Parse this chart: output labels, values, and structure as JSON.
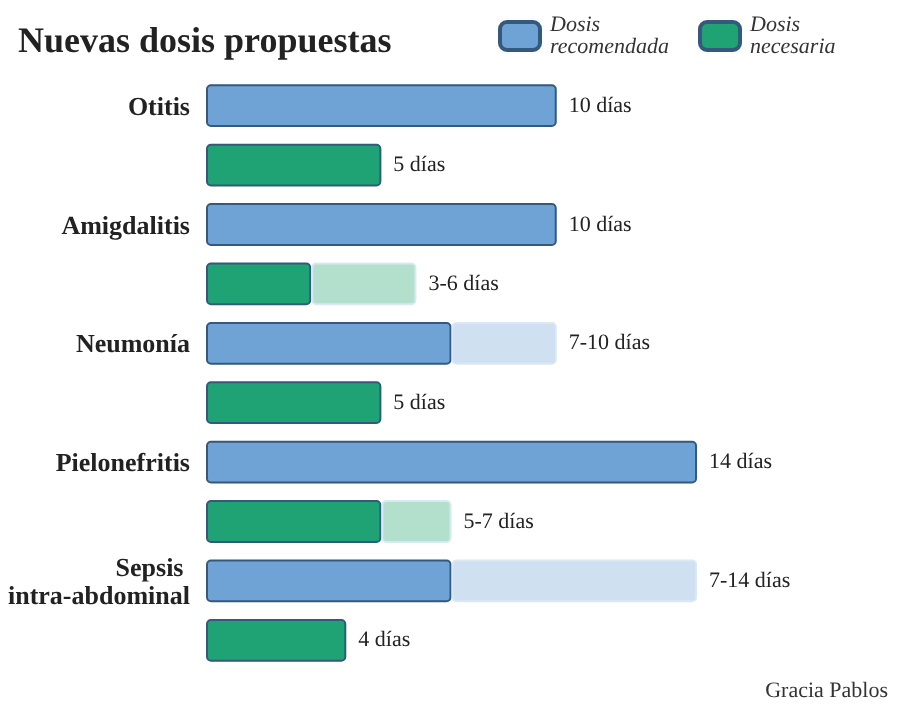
{
  "chart_data": {
    "type": "bar",
    "orientation": "horizontal",
    "stacked": true,
    "title": "Nuevas dosis propuestas",
    "categories": [
      "Otitis",
      null,
      "Amigdalitis",
      null,
      "Neumonía",
      null,
      "Pielonefritis",
      null,
      "Sepsis intra-abdominal",
      null
    ],
    "series": [
      {
        "name": "Dosis recomendada",
        "color": "#6fa3d6",
        "values": [
          10,
          null,
          10,
          null,
          7,
          null,
          14,
          null,
          7,
          null
        ],
        "value_labels": [
          "10 días",
          null,
          "10 días",
          null,
          null,
          null,
          "14 días",
          null,
          null,
          null
        ]
      },
      {
        "name": "Dosis necesaria",
        "color": "#1fa374",
        "values": [
          null,
          5,
          null,
          3,
          null,
          5,
          null,
          5,
          null,
          4
        ],
        "value_labels": [
          null,
          "5 días",
          null,
          null,
          null,
          "5 días",
          null,
          null,
          null,
          "4 días"
        ]
      },
      {
        "color": "#cfe0f1",
        "values": [
          null,
          null,
          null,
          null,
          3,
          null,
          null,
          null,
          7,
          null
        ],
        "value_labels": [
          null,
          null,
          null,
          null,
          "7-10 días",
          null,
          null,
          null,
          "7-14 días",
          null
        ]
      },
      {
        "color": "#b3e0cc",
        "values": [
          null,
          null,
          null,
          3,
          null,
          null,
          null,
          2,
          null,
          null
        ],
        "value_labels": [
          null,
          null,
          null,
          "3-6 días",
          null,
          null,
          null,
          "5-7 días",
          null,
          null
        ]
      }
    ],
    "legend": "top right",
    "annotations": [
      "Gracia Pablos"
    ]
  }
}
